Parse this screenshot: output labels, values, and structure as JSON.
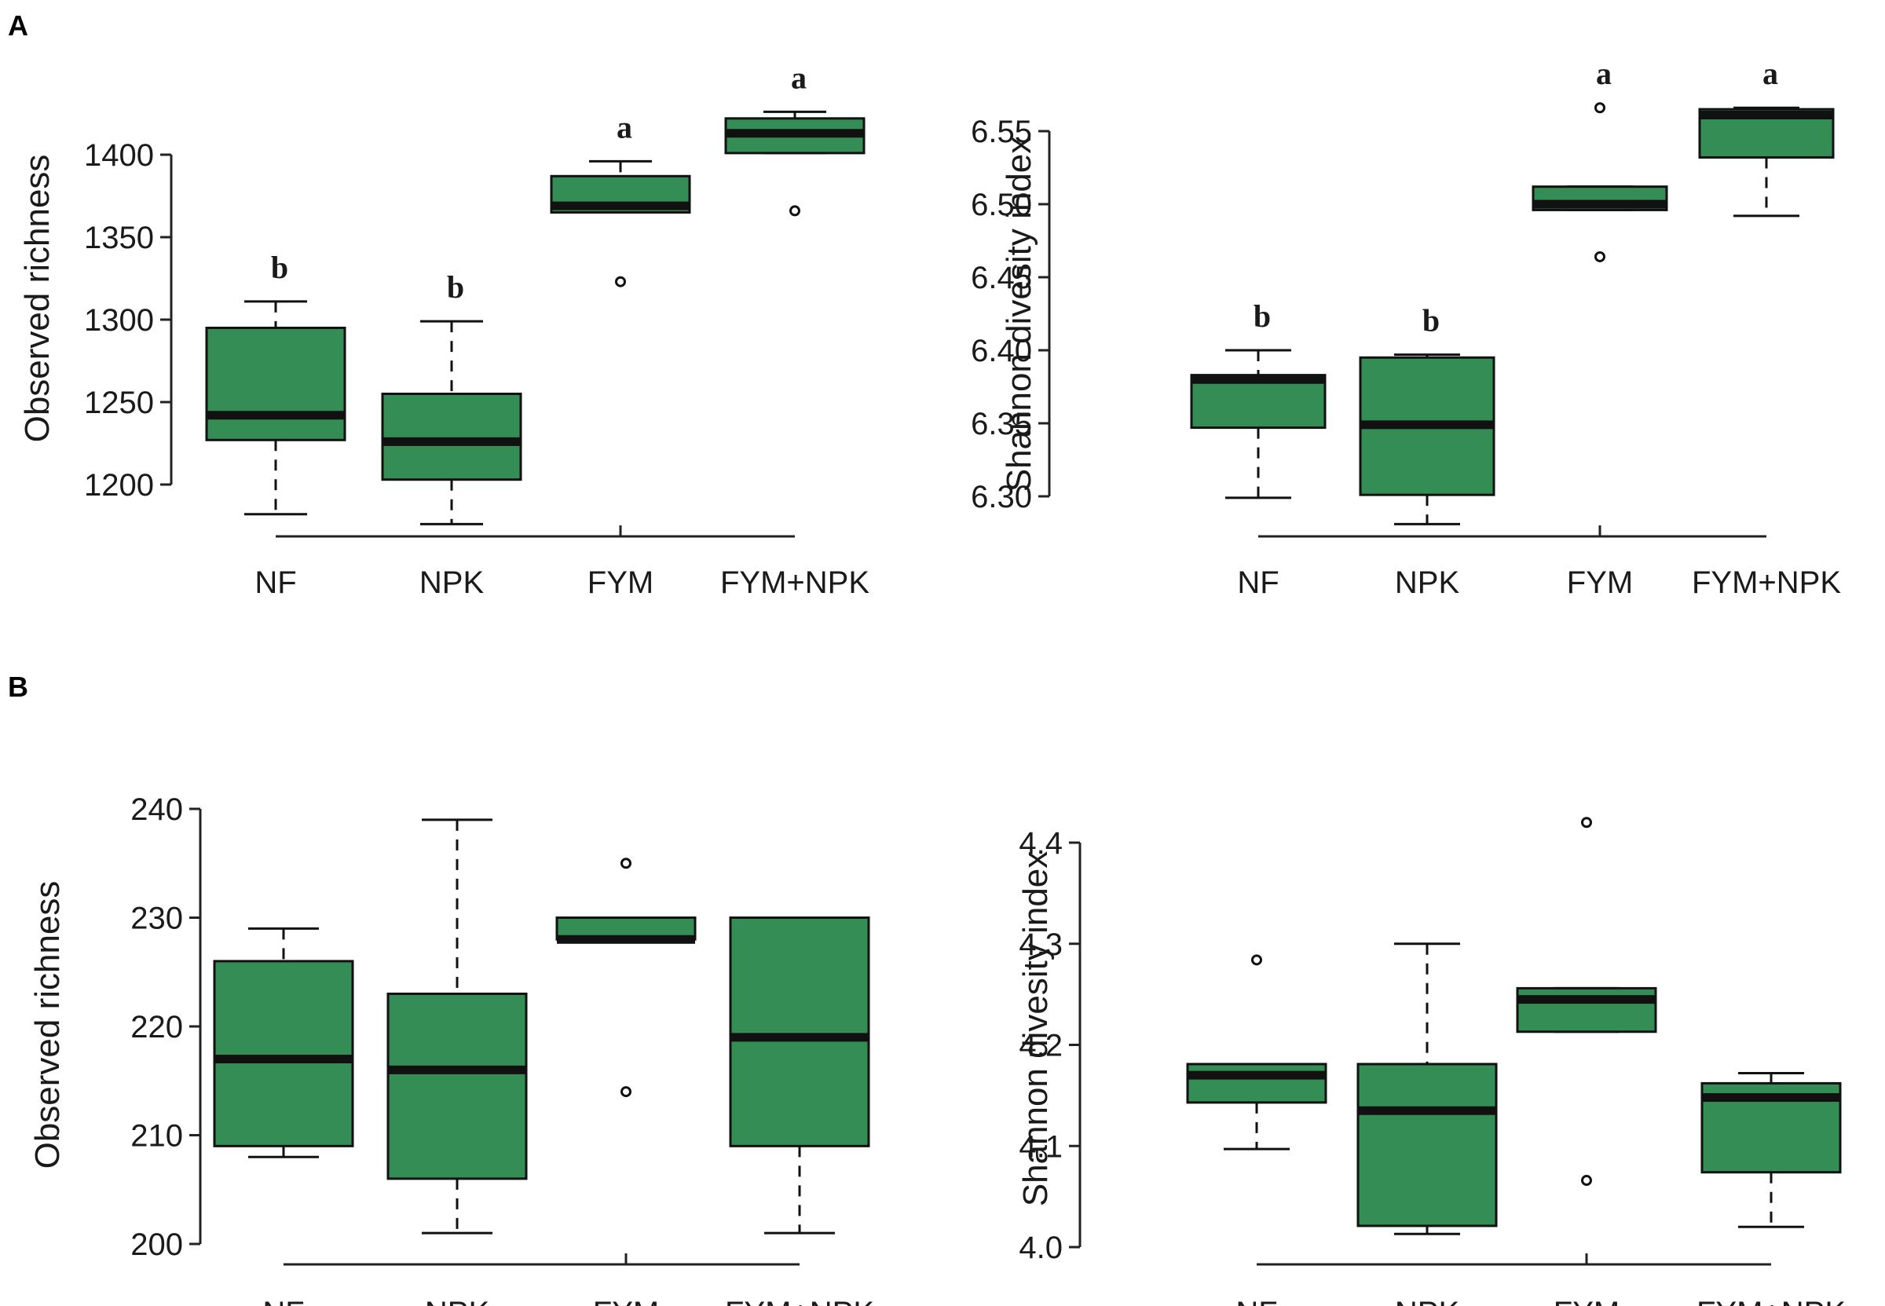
{
  "panel_labels": {
    "top": "A",
    "bottom": "B"
  },
  "colors": {
    "box_fill": "#338d54",
    "stroke": "#111111"
  },
  "chart_data": [
    {
      "type": "boxplot",
      "panel": "A",
      "ylabel": "Observed richness",
      "ylim": [
        1180,
        1425
      ],
      "yticks": [
        1200,
        1250,
        1300,
        1350,
        1400
      ],
      "categories": [
        "NF",
        "NPK",
        "FYM",
        "FYM+NPK"
      ],
      "boxes": [
        {
          "category": "NF",
          "whisker_low": 1182,
          "q1": 1227,
          "median": 1242,
          "q3": 1295,
          "whisker_high": 1311,
          "outliers": [],
          "letter": "b"
        },
        {
          "category": "NPK",
          "whisker_low": 1176,
          "q1": 1203,
          "median": 1226,
          "q3": 1255,
          "whisker_high": 1299,
          "outliers": [],
          "letter": "b"
        },
        {
          "category": "FYM",
          "whisker_low": 1365,
          "q1": 1365,
          "median": 1369,
          "q3": 1387,
          "whisker_high": 1396,
          "outliers": [
            1323
          ],
          "letter": "a"
        },
        {
          "category": "FYM+NPK",
          "whisker_low": 1401,
          "q1": 1401,
          "median": 1413,
          "q3": 1422,
          "whisker_high": 1426,
          "outliers": [
            1366
          ],
          "letter": "a"
        }
      ]
    },
    {
      "type": "boxplot",
      "panel": "A",
      "ylabel": "Shannon  divesity  index",
      "ylim": [
        6.28,
        6.57
      ],
      "yticks": [
        6.3,
        6.35,
        6.4,
        6.45,
        6.5,
        6.55
      ],
      "tick_decimals": 2,
      "categories": [
        "NF",
        "NPK",
        "FYM",
        "FYM+NPK"
      ],
      "boxes": [
        {
          "category": "NF",
          "whisker_low": 6.299,
          "q1": 6.347,
          "median": 6.38,
          "q3": 6.383,
          "whisker_high": 6.4,
          "outliers": [],
          "letter": "b"
        },
        {
          "category": "NPK",
          "whisker_low": 6.281,
          "q1": 6.301,
          "median": 6.349,
          "q3": 6.395,
          "whisker_high": 6.397,
          "outliers": [],
          "letter": "b"
        },
        {
          "category": "FYM",
          "whisker_low": 6.496,
          "q1": 6.496,
          "median": 6.5,
          "q3": 6.512,
          "whisker_high": 6.512,
          "outliers": [
            6.464,
            6.566
          ],
          "letter": "a"
        },
        {
          "category": "FYM+NPK",
          "whisker_low": 6.492,
          "q1": 6.532,
          "median": 6.561,
          "q3": 6.565,
          "whisker_high": 6.566,
          "outliers": [],
          "letter": "a"
        }
      ]
    },
    {
      "type": "boxplot",
      "panel": "B",
      "ylabel": "Observed  richness",
      "ylim": [
        200,
        240
      ],
      "yticks": [
        200,
        210,
        220,
        230,
        240
      ],
      "categories": [
        "NF",
        "NPK",
        "FYM",
        "FYM+NPK"
      ],
      "boxes": [
        {
          "category": "NF",
          "whisker_low": 208,
          "q1": 209,
          "median": 217,
          "q3": 226,
          "whisker_high": 229,
          "outliers": []
        },
        {
          "category": "NPK",
          "whisker_low": 201,
          "q1": 206,
          "median": 216,
          "q3": 223,
          "whisker_high": 239,
          "outliers": []
        },
        {
          "category": "FYM",
          "whisker_low": 228,
          "q1": 228,
          "median": 228,
          "q3": 230,
          "whisker_high": 230,
          "outliers": [
            214,
            235
          ]
        },
        {
          "category": "FYM+NPK",
          "whisker_low": 201,
          "q1": 209,
          "median": 219,
          "q3": 230,
          "whisker_high": 230,
          "outliers": []
        }
      ]
    },
    {
      "type": "boxplot",
      "panel": "B",
      "ylabel": "Shannon  divesity  index",
      "ylim": [
        4.0,
        4.42
      ],
      "yticks": [
        4.0,
        4.1,
        4.2,
        4.3,
        4.4
      ],
      "tick_decimals": 1,
      "categories": [
        "NF",
        "NPK",
        "FYM",
        "FYM+NPK"
      ],
      "boxes": [
        {
          "category": "NF",
          "whisker_low": 4.097,
          "q1": 4.143,
          "median": 4.17,
          "q3": 4.181,
          "whisker_high": 4.181,
          "outliers": [
            4.284
          ]
        },
        {
          "category": "NPK",
          "whisker_low": 4.013,
          "q1": 4.021,
          "median": 4.135,
          "q3": 4.181,
          "whisker_high": 4.3,
          "outliers": []
        },
        {
          "category": "FYM",
          "whisker_low": 4.213,
          "q1": 4.213,
          "median": 4.245,
          "q3": 4.256,
          "whisker_high": 4.256,
          "outliers": [
            4.066,
            4.42
          ]
        },
        {
          "category": "FYM+NPK",
          "whisker_low": 4.02,
          "q1": 4.074,
          "median": 4.148,
          "q3": 4.162,
          "whisker_high": 4.172,
          "outliers": []
        }
      ]
    }
  ]
}
